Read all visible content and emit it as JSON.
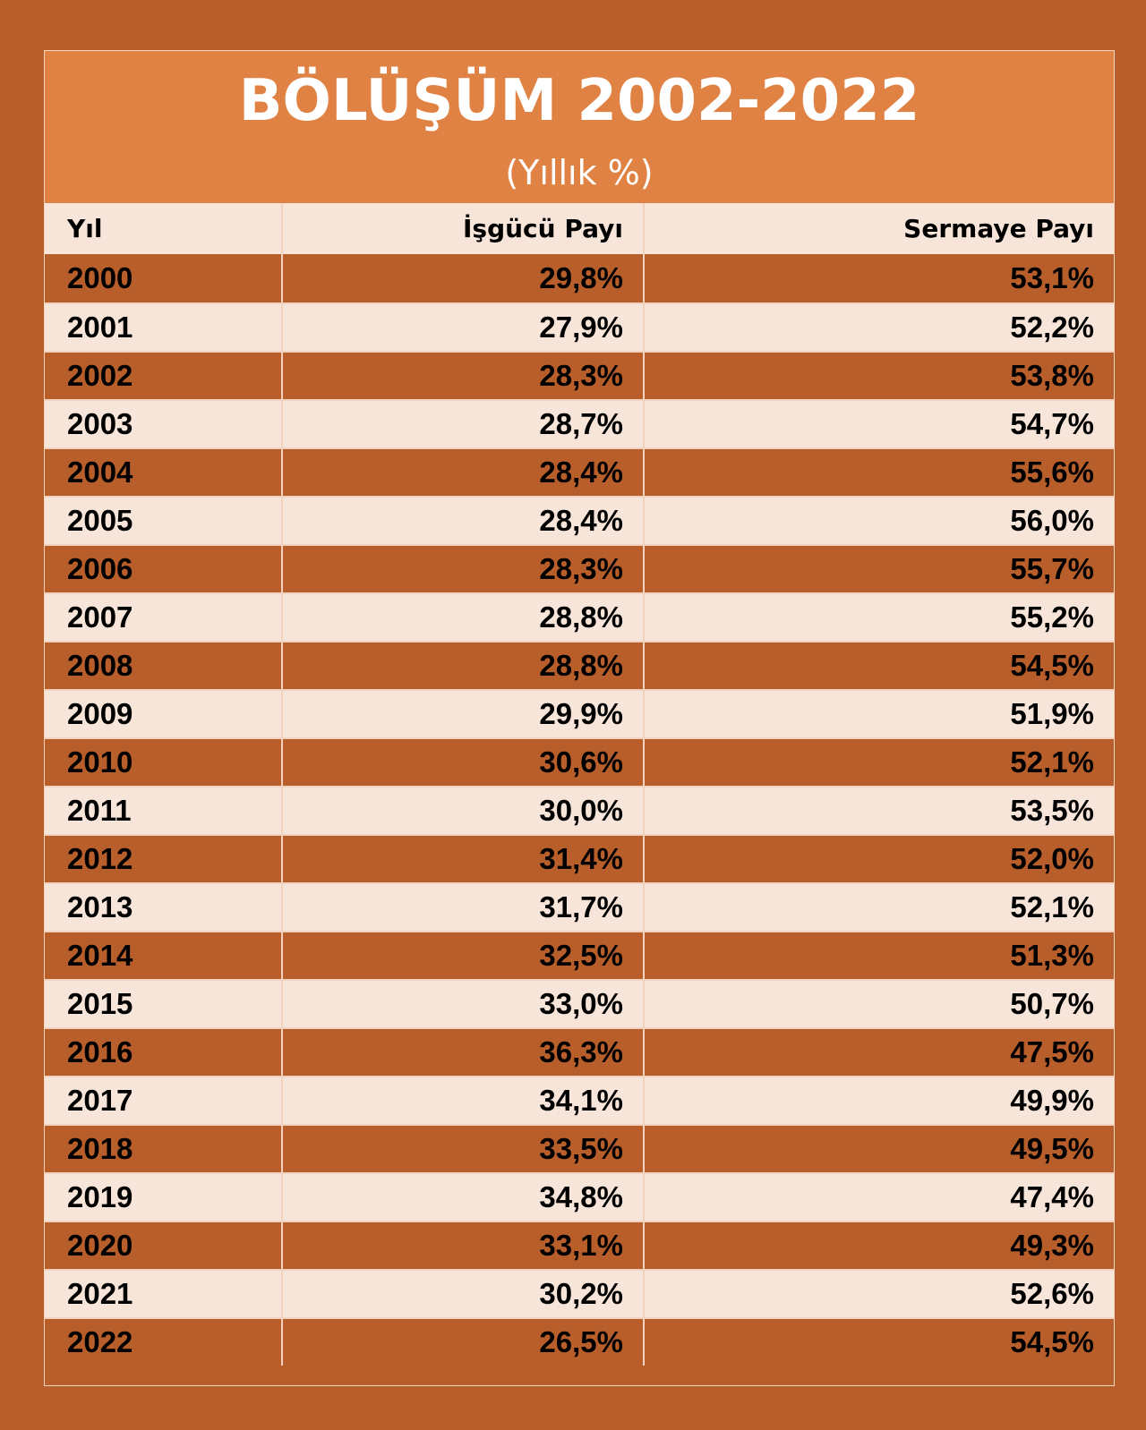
{
  "chart_data": {
    "type": "table",
    "title": "BÖLÜŞÜM 2002-2022",
    "subtitle": "(Yıllık %)",
    "columns": [
      "Yıl",
      "İşgücü Payı",
      "Sermaye Payı"
    ],
    "rows": [
      [
        "2000",
        "29,8%",
        "53,1%"
      ],
      [
        "2001",
        "27,9%",
        "52,2%"
      ],
      [
        "2002",
        "28,3%",
        "53,8%"
      ],
      [
        "2003",
        "28,7%",
        "54,7%"
      ],
      [
        "2004",
        "28,4%",
        "55,6%"
      ],
      [
        "2005",
        "28,4%",
        "56,0%"
      ],
      [
        "2006",
        "28,3%",
        "55,7%"
      ],
      [
        "2007",
        "28,8%",
        "55,2%"
      ],
      [
        "2008",
        "28,8%",
        "54,5%"
      ],
      [
        "2009",
        "29,9%",
        "51,9%"
      ],
      [
        "2010",
        "30,6%",
        "52,1%"
      ],
      [
        "2011",
        "30,0%",
        "53,5%"
      ],
      [
        "2012",
        "31,4%",
        "52,0%"
      ],
      [
        "2013",
        "31,7%",
        "52,1%"
      ],
      [
        "2014",
        "32,5%",
        "51,3%"
      ],
      [
        "2015",
        "33,0%",
        "50,7%"
      ],
      [
        "2016",
        "36,3%",
        "47,5%"
      ],
      [
        "2017",
        "34,1%",
        "49,9%"
      ],
      [
        "2018",
        "33,5%",
        "49,5%"
      ],
      [
        "2019",
        "34,8%",
        "47,4%"
      ],
      [
        "2020",
        "33,1%",
        "49,3%"
      ],
      [
        "2021",
        "30,2%",
        "52,6%"
      ],
      [
        "2022",
        "26,5%",
        "54,5%"
      ]
    ]
  },
  "colors": {
    "page_background": "#b75e2b",
    "header_background": "#e08243",
    "dark_row": "#b75e2b",
    "light_row": "#f8e5d9",
    "grid_line": "#f3d2bd",
    "title_text": "#ffffff",
    "cell_text": "#000000"
  }
}
